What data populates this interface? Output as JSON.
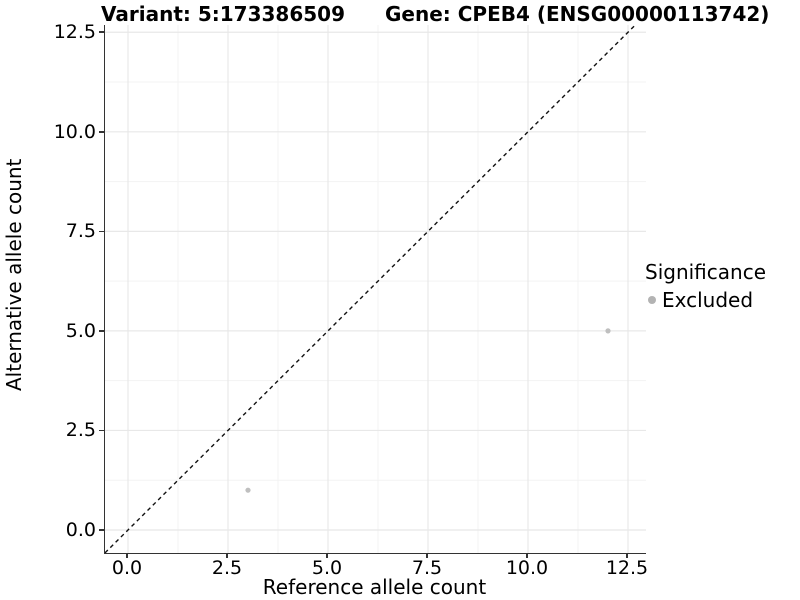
{
  "chart_data": {
    "type": "scatter",
    "title_left": "Variant: 5:173386509",
    "title_right": "Gene: CPEB4 (ENSG00000113742)",
    "xlabel": "Reference allele count",
    "ylabel": "Alternative allele count",
    "x_range": [
      -0.575,
      12.95
    ],
    "y_range": [
      -0.578,
      12.682
    ],
    "major_ticks": [
      0,
      2.5,
      5,
      7.5,
      10,
      12.5
    ],
    "minor_ticks": [
      1.25,
      3.75,
      6.25,
      8.75,
      11.25
    ],
    "tick_labels": [
      "0.0",
      "2.5",
      "5.0",
      "7.5",
      "10.0",
      "12.5"
    ],
    "series": [
      {
        "name": "Excluded",
        "color": "#bfbfbf",
        "point_radius": 2.6,
        "points": [
          {
            "x": 3,
            "y": 1
          },
          {
            "x": 12,
            "y": 5
          }
        ]
      }
    ],
    "abline": {
      "slope": 1,
      "intercept": 0,
      "style": "dashed",
      "color": "#111111"
    },
    "legend": {
      "title": "Significance",
      "position": "right",
      "entries": [
        {
          "label": "Excluded",
          "color": "#b3b3b3"
        }
      ]
    },
    "grid": {
      "major_color": "#e8e8e8",
      "minor_color": "#f3f3f3",
      "on": true
    },
    "axis_color": "#333333",
    "background": "#ffffff"
  }
}
